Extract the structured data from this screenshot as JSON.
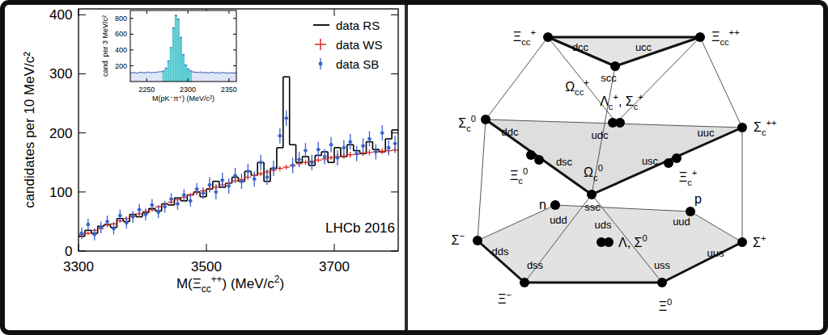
{
  "chart_data": [
    {
      "type": "histogram",
      "x_label": [
        {
          "text": "M(Ξ"
        },
        {
          "text": "cc",
          "sub": true
        },
        {
          "text": "++",
          "sup": true
        },
        {
          "text": ") (MeV/c"
        },
        {
          "text": "2",
          "sup": true
        },
        {
          "text": ")"
        }
      ],
      "y_label": "candidates per 10 MeV/c²",
      "bins": [
        3300,
        3310,
        3320,
        3330,
        3340,
        3350,
        3360,
        3370,
        3380,
        3390,
        3400,
        3410,
        3420,
        3430,
        3440,
        3450,
        3460,
        3470,
        3480,
        3490,
        3500,
        3510,
        3520,
        3530,
        3540,
        3550,
        3560,
        3570,
        3580,
        3590,
        3600,
        3610,
        3620,
        3630,
        3640,
        3650,
        3660,
        3670,
        3680,
        3690,
        3700,
        3710,
        3720,
        3730,
        3740,
        3750,
        3760,
        3770,
        3780,
        3790,
        3800
      ],
      "xlim": [
        3300,
        3800
      ],
      "ylim": [
        0,
        410
      ],
      "xticks": [
        3300,
        3500,
        3700
      ],
      "yticks": [
        0,
        100,
        200,
        300,
        400
      ],
      "legend": "top-right",
      "annotations": [
        "LHCb 2016"
      ],
      "series": [
        {
          "name": "data RS",
          "type": "step",
          "color": "#000000",
          "values": [
            25,
            35,
            30,
            42,
            45,
            40,
            55,
            50,
            62,
            58,
            65,
            72,
            68,
            80,
            78,
            90,
            85,
            95,
            100,
            92,
            105,
            118,
            108,
            115,
            125,
            118,
            135,
            128,
            150,
            118,
            140,
            175,
            295,
            180,
            150,
            160,
            145,
            162,
            168,
            150,
            175,
            160,
            180,
            170,
            165,
            185,
            172,
            168,
            190,
            205
          ]
        },
        {
          "name": "data WS",
          "type": "scatter",
          "marker": "cross",
          "color": "#e0261d",
          "values": [
            28,
            30,
            35,
            38,
            44,
            46,
            51,
            55,
            59,
            63,
            67,
            70,
            75,
            79,
            83,
            87,
            91,
            95,
            99,
            102,
            106,
            108,
            112,
            115,
            119,
            121,
            125,
            128,
            131,
            134,
            137,
            140,
            142,
            145,
            148,
            150,
            152,
            154,
            156,
            158,
            160,
            161,
            163,
            164,
            166,
            167,
            168,
            169,
            170,
            171
          ],
          "errors": [
            3,
            3,
            3,
            3,
            3,
            3,
            3,
            3,
            3,
            3,
            3,
            3,
            3,
            3,
            3,
            3,
            3,
            3,
            3,
            3,
            4,
            4,
            4,
            4,
            4,
            4,
            4,
            4,
            4,
            4,
            4,
            4,
            4,
            4,
            4,
            4,
            4,
            4,
            4,
            4,
            5,
            5,
            5,
            5,
            5,
            5,
            5,
            5,
            5,
            5
          ]
        },
        {
          "name": "data SB",
          "type": "scatter",
          "marker": "circle",
          "color": "#3a62c9",
          "values": [
            30,
            45,
            28,
            40,
            50,
            38,
            60,
            48,
            58,
            70,
            62,
            78,
            66,
            75,
            88,
            80,
            95,
            85,
            105,
            98,
            112,
            100,
            120,
            110,
            128,
            118,
            135,
            122,
            150,
            125,
            140,
            195,
            225,
            145,
            155,
            170,
            150,
            172,
            160,
            180,
            158,
            175,
            185,
            165,
            178,
            190,
            168,
            200,
            175,
            182
          ],
          "errors": [
            10,
            10,
            10,
            10,
            10,
            10,
            10,
            10,
            10,
            10,
            10,
            10,
            10,
            10,
            10,
            10,
            10,
            10,
            10,
            10,
            13,
            13,
            13,
            13,
            13,
            13,
            13,
            13,
            13,
            13,
            13,
            13,
            13,
            13,
            13,
            13,
            13,
            13,
            13,
            13,
            13,
            13,
            13,
            13,
            13,
            13,
            13,
            13,
            13,
            13
          ]
        }
      ]
    },
    {
      "type": "histogram",
      "x_label": "M(pK⁻π⁺) (MeV/c²)",
      "y_label": "cand. per 3 MeV/c²",
      "bins": [
        2230,
        2233,
        2236,
        2239,
        2242,
        2245,
        2248,
        2251,
        2254,
        2257,
        2260,
        2263,
        2266,
        2269,
        2272,
        2275,
        2278,
        2281,
        2284,
        2287,
        2290,
        2293,
        2296,
        2299,
        2302,
        2305,
        2308,
        2311,
        2314,
        2317,
        2320,
        2323,
        2326,
        2329,
        2332,
        2335,
        2338,
        2341,
        2344,
        2347,
        2350,
        2353,
        2356,
        2359
      ],
      "xlim": [
        2230,
        2359
      ],
      "ylim": [
        0,
        900
      ],
      "xticks": [
        2250,
        2300,
        2350
      ],
      "yticks": [
        200,
        400,
        600,
        800
      ],
      "series": [
        {
          "color": "#2f4fb0",
          "values": [
            110,
            115,
            108,
            112,
            118,
            110,
            114,
            120,
            112,
            116,
            118,
            122,
            125,
            135,
            170,
            260,
            430,
            680,
            840,
            790,
            560,
            340,
            210,
            160,
            135,
            122,
            118,
            115,
            120,
            112,
            116,
            110,
            114,
            118,
            110,
            112,
            108,
            115,
            110,
            106,
            112,
            108,
            110
          ],
          "colors": [
            "#dce4f7",
            "#dce4f7",
            "#dce4f7",
            "#dce4f7",
            "#dce4f7",
            "#dce4f7",
            "#dce4f7",
            "#dce4f7",
            "#dce4f7",
            "#dce4f7",
            "#dce4f7",
            "#dce4f7",
            "#dce4f7",
            "#5ccbd3",
            "#5ccbd3",
            "#5ccbd3",
            "#5ccbd3",
            "#5ccbd3",
            "#5ccbd3",
            "#5ccbd3",
            "#5ccbd3",
            "#5ccbd3",
            "#5ccbd3",
            "#5ccbd3",
            "#5ccbd3",
            "#dce4f7",
            "#dce4f7",
            "#dce4f7",
            "#dce4f7",
            "#dce4f7",
            "#dce4f7",
            "#dce4f7",
            "#dce4f7",
            "#dce4f7",
            "#dce4f7",
            "#dce4f7",
            "#dce4f7",
            "#dce4f7",
            "#dce4f7",
            "#dce4f7",
            "#dce4f7",
            "#dce4f7",
            "#dce4f7"
          ]
        }
      ]
    }
  ],
  "diagram": {
    "nodes": [
      {
        "quarks": "dcc",
        "label": [
          {
            "text": "Ξ"
          },
          {
            "text": "cc",
            "sub": true
          },
          {
            "text": "+",
            "sup": true
          }
        ]
      },
      {
        "quarks": "ucc",
        "label": [
          {
            "text": "Ξ"
          },
          {
            "text": "cc",
            "sub": true
          },
          {
            "text": "++",
            "sup": true
          }
        ]
      },
      {
        "quarks": "scc",
        "label": [
          {
            "text": "Ω"
          },
          {
            "text": "cc",
            "sub": true
          },
          {
            "text": "+",
            "sup": true
          }
        ]
      },
      {
        "quarks": "ddc",
        "label": [
          {
            "text": "Σ"
          },
          {
            "text": "c",
            "sub": true
          },
          {
            "text": "0",
            "sup": true
          }
        ]
      },
      {
        "quarks": "udc",
        "label": [
          {
            "text": "Λ"
          },
          {
            "text": "c",
            "sub": true
          },
          {
            "text": "+",
            "sup": true
          },
          {
            "text": ", Σ"
          },
          {
            "text": "c",
            "sub": true
          },
          {
            "text": "+",
            "sup": true
          }
        ]
      },
      {
        "quarks": "uuc",
        "label": [
          {
            "text": "Σ"
          },
          {
            "text": "c",
            "sub": true
          },
          {
            "text": "++",
            "sup": true
          }
        ]
      },
      {
        "quarks": "dsc",
        "label": [
          {
            "text": "Ξ"
          },
          {
            "text": "c",
            "sub": true
          },
          {
            "text": "0",
            "sup": true
          }
        ]
      },
      {
        "quarks": "usc",
        "label": [
          {
            "text": "Ξ"
          },
          {
            "text": "c",
            "sub": true
          },
          {
            "text": "+",
            "sup": true
          }
        ]
      },
      {
        "quarks": "ssc",
        "label": [
          {
            "text": "Ω"
          },
          {
            "text": "c",
            "sub": true
          },
          {
            "text": "0",
            "sup": true
          }
        ]
      },
      {
        "quarks": "udd",
        "label": [
          {
            "text": "n"
          }
        ]
      },
      {
        "quarks": "uud",
        "label": [
          {
            "text": "p"
          }
        ]
      },
      {
        "quarks": "dds",
        "label": [
          {
            "text": "Σ"
          },
          {
            "text": "−",
            "sup": true
          }
        ]
      },
      {
        "quarks": "uds",
        "label": [
          {
            "text": "Λ, Σ"
          },
          {
            "text": "0",
            "sup": true
          }
        ]
      },
      {
        "quarks": "uus",
        "label": [
          {
            "text": "Σ"
          },
          {
            "text": "+",
            "sup": true
          }
        ]
      },
      {
        "quarks": "dss",
        "label": [
          {
            "text": "Ξ"
          },
          {
            "text": "−",
            "sup": true
          }
        ]
      },
      {
        "quarks": "uss",
        "label": [
          {
            "text": "Ξ"
          },
          {
            "text": "0",
            "sup": true
          }
        ]
      }
    ]
  }
}
